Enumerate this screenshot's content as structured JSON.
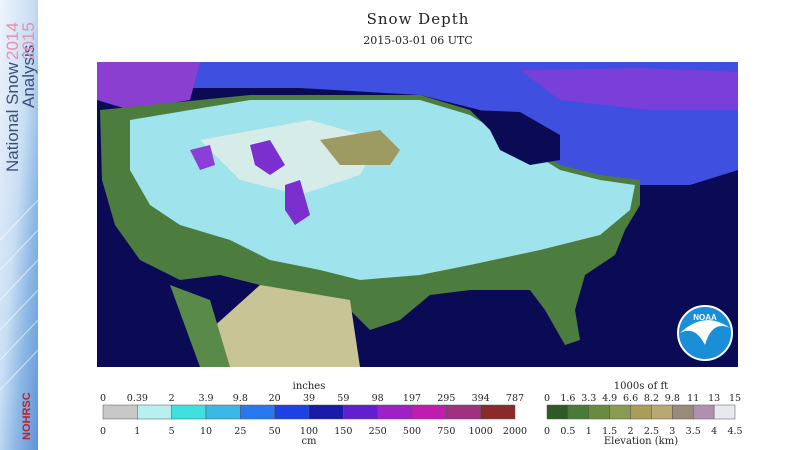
{
  "header": {
    "title": "Snow Depth",
    "timestamp": "2015-03-01 06 UTC"
  },
  "sidebar": {
    "title_lines": [
      "National Snow",
      "Analysis"
    ],
    "years": [
      "2014",
      "2015"
    ],
    "logo": "NOHRSC"
  },
  "map": {
    "logo": "NOAA"
  },
  "legend": {
    "snow_depth": {
      "top_label": "inches",
      "top_ticks": [
        "0",
        "0.39",
        "2",
        "3.9",
        "9.8",
        "20",
        "39",
        "59",
        "98",
        "197",
        "295",
        "394",
        "787"
      ],
      "bottom_label": "cm",
      "bottom_ticks": [
        "0",
        "1",
        "5",
        "10",
        "25",
        "50",
        "100",
        "150",
        "250",
        "500",
        "750",
        "1000",
        "2000"
      ]
    },
    "elevation": {
      "top_label": "1000s of ft",
      "top_ticks": [
        "0",
        "1.6",
        "3.3",
        "4.9",
        "6.6",
        "8.2",
        "9.8",
        "11",
        "13",
        "15"
      ],
      "bottom_label": "Elevation (km)",
      "bottom_ticks": [
        "0",
        "0.5",
        "1",
        "1.5",
        "2",
        "2.5",
        "3",
        "3.5",
        "4",
        "4.5"
      ]
    }
  }
}
